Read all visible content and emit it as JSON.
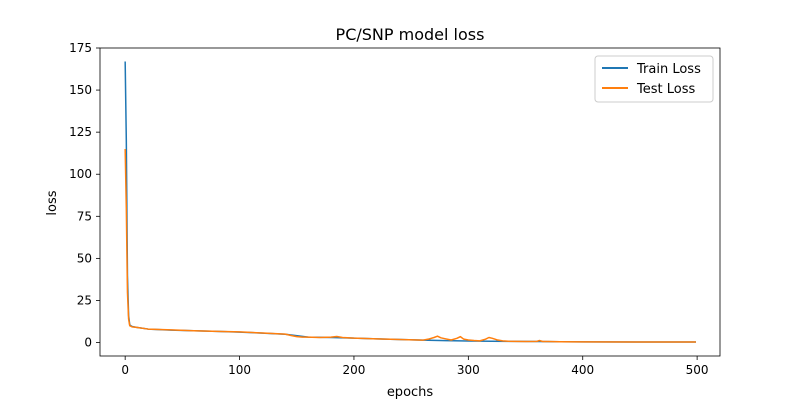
{
  "chart_data": {
    "type": "line",
    "title": "PC/SNP model loss",
    "xlabel": "epochs",
    "ylabel": "loss",
    "xlim": [
      -22,
      520
    ],
    "ylim": [
      -8,
      175
    ],
    "xticks": [
      0,
      100,
      200,
      300,
      400,
      500
    ],
    "yticks": [
      0,
      25,
      50,
      75,
      100,
      125,
      150,
      175
    ],
    "grid": false,
    "legend_position": "top-right",
    "series": [
      {
        "name": "Train Loss",
        "color": "#1f77b4",
        "x": [
          0,
          1,
          2,
          3,
          4,
          6,
          10,
          20,
          40,
          60,
          80,
          100,
          120,
          140,
          160,
          180,
          200,
          220,
          240,
          260,
          280,
          300,
          320,
          340,
          360,
          380,
          400,
          450,
          499
        ],
        "y": [
          167,
          120,
          40,
          16,
          10.5,
          9.5,
          9,
          8,
          7.4,
          7,
          6.6,
          6.2,
          5.6,
          4.9,
          3.2,
          3.0,
          2.6,
          2.2,
          1.8,
          1.4,
          1.1,
          0.9,
          0.8,
          0.7,
          0.6,
          0.5,
          0.4,
          0.3,
          0.3
        ]
      },
      {
        "name": "Test Loss",
        "color": "#ff7f0e",
        "x": [
          0,
          1,
          2,
          3,
          4,
          6,
          10,
          20,
          40,
          60,
          80,
          100,
          120,
          140,
          145,
          150,
          155,
          160,
          170,
          180,
          185,
          190,
          200,
          220,
          240,
          260,
          265,
          270,
          273,
          276,
          280,
          285,
          290,
          293,
          296,
          300,
          305,
          310,
          315,
          318,
          321,
          325,
          330,
          335,
          340,
          350,
          360,
          362,
          365,
          370,
          380,
          400,
          450,
          499
        ],
        "y": [
          115,
          80,
          30,
          14,
          10,
          9.3,
          9,
          8,
          7.5,
          7,
          6.6,
          6.3,
          5.7,
          5,
          4.2,
          3.5,
          3.2,
          3.2,
          3.0,
          3.2,
          3.6,
          3.0,
          2.6,
          2.2,
          1.8,
          1.4,
          2.0,
          3.0,
          3.8,
          2.8,
          2.2,
          1.5,
          2.5,
          3.5,
          2.0,
          1.5,
          1.2,
          1.0,
          2.0,
          3.0,
          2.5,
          1.6,
          1.0,
          0.8,
          0.7,
          0.6,
          0.7,
          1.2,
          0.6,
          0.6,
          0.5,
          0.4,
          0.3,
          0.3
        ]
      }
    ]
  }
}
